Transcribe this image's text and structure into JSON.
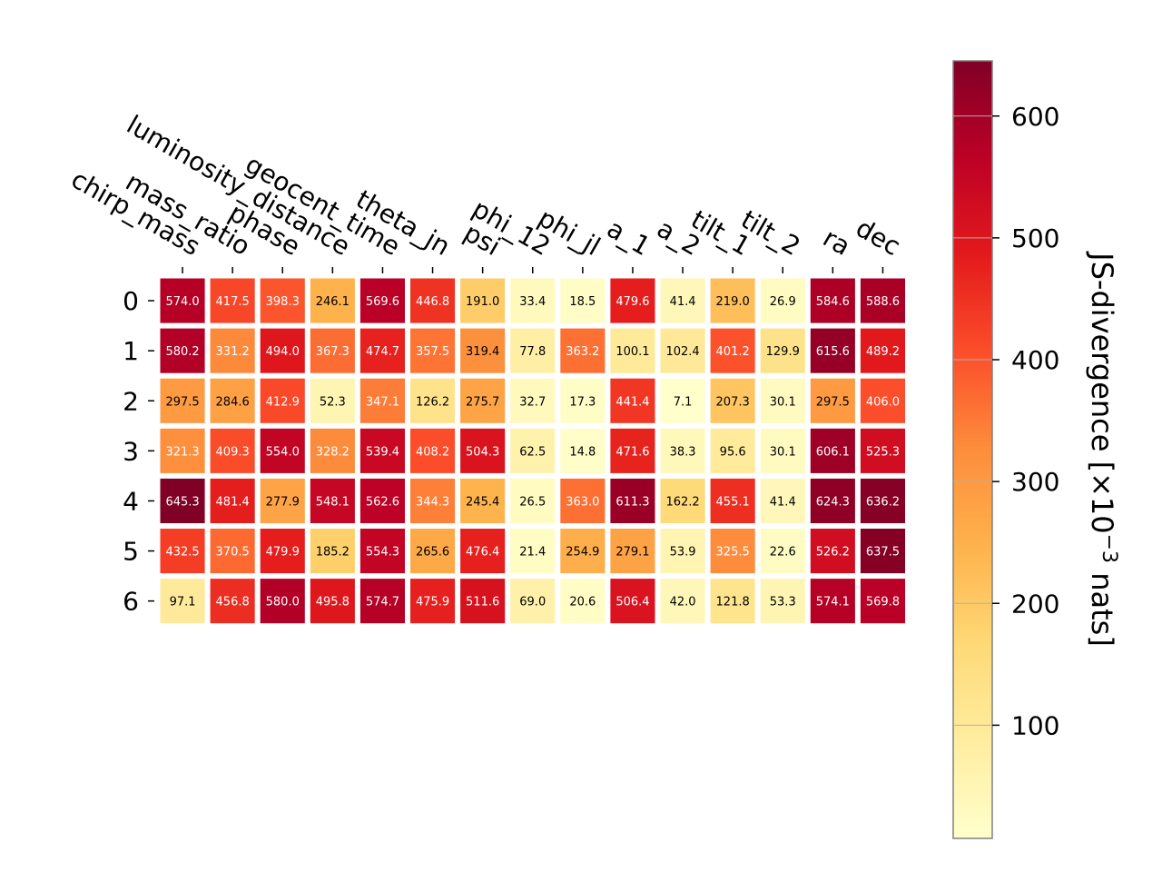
{
  "chart_data": {
    "type": "heatmap",
    "x_categories": [
      "chirp_mass",
      "mass_ratio",
      "phase",
      "luminosity_distance",
      "geocent_time",
      "theta_jn",
      "psi",
      "phi_12",
      "phi_jl",
      "a_1",
      "a_2",
      "tilt_1",
      "tilt_2",
      "ra",
      "dec"
    ],
    "y_categories": [
      "0",
      "1",
      "2",
      "3",
      "4",
      "5",
      "6"
    ],
    "values": [
      [
        574.0,
        417.5,
        398.3,
        246.1,
        569.6,
        446.8,
        191.0,
        33.4,
        18.5,
        479.6,
        41.4,
        219.0,
        26.9,
        584.6,
        588.6
      ],
      [
        580.2,
        331.2,
        494.0,
        367.3,
        474.7,
        357.5,
        319.4,
        77.8,
        363.2,
        100.1,
        102.4,
        401.2,
        129.9,
        615.6,
        489.2
      ],
      [
        297.5,
        284.6,
        412.9,
        52.3,
        347.1,
        126.2,
        275.7,
        32.7,
        17.3,
        441.4,
        7.1,
        207.3,
        30.1,
        297.5,
        406.0
      ],
      [
        321.3,
        409.3,
        554.0,
        328.2,
        539.4,
        408.2,
        504.3,
        62.5,
        14.8,
        471.6,
        38.3,
        95.6,
        30.1,
        606.1,
        525.3
      ],
      [
        645.3,
        481.4,
        277.9,
        548.1,
        562.6,
        344.3,
        245.4,
        26.5,
        363.0,
        611.3,
        162.2,
        455.1,
        41.4,
        624.3,
        636.2
      ],
      [
        432.5,
        370.5,
        479.9,
        185.2,
        554.3,
        265.6,
        476.4,
        21.4,
        254.9,
        279.1,
        53.9,
        325.5,
        22.6,
        526.2,
        637.5
      ],
      [
        97.1,
        456.8,
        580.0,
        495.8,
        574.7,
        475.9,
        511.6,
        69.0,
        20.6,
        506.4,
        42.0,
        121.8,
        53.3,
        574.1,
        569.8
      ]
    ],
    "value_labels": [
      [
        "574.0",
        "417.5",
        "398.3",
        "246.1",
        "569.6",
        "446.8",
        "191.0",
        "33.4",
        "18.5",
        "479.6",
        "41.4",
        "219.0",
        "26.9",
        "584.6",
        "588.6"
      ],
      [
        "580.2",
        "331.2",
        "494.0",
        "367.3",
        "474.7",
        "357.5",
        "319.4",
        "77.8",
        "363.2",
        "100.1",
        "102.4",
        "401.2",
        "129.9",
        "615.6",
        "489.2"
      ],
      [
        "297.5",
        "284.6",
        "412.9",
        "52.3",
        "347.1",
        "126.2",
        "275.7",
        "32.7",
        "17.3",
        "441.4",
        "7.1",
        "207.3",
        "30.1",
        "297.5",
        "406.0"
      ],
      [
        "321.3",
        "409.3",
        "554.0",
        "328.2",
        "539.4",
        "408.2",
        "504.3",
        "62.5",
        "14.8",
        "471.6",
        "38.3",
        "95.6",
        "30.1",
        "606.1",
        "525.3"
      ],
      [
        "645.3",
        "481.4",
        "277.9",
        "548.1",
        "562.6",
        "344.3",
        "245.4",
        "26.5",
        "363.0",
        "611.3",
        "162.2",
        "455.1",
        "41.4",
        "624.3",
        "636.2"
      ],
      [
        "432.5",
        "370.5",
        "479.9",
        "185.2",
        "554.3",
        "265.6",
        "476.4",
        "21.4",
        "254.9",
        "279.1",
        "53.9",
        "325.5",
        "22.6",
        "526.2",
        "637.5"
      ],
      [
        "97.1",
        "456.8",
        "580.0",
        "495.8",
        "574.7",
        "475.9",
        "511.6",
        "69.0",
        "20.6",
        "506.4",
        "42.0",
        "121.8",
        "53.3",
        "574.1",
        "569.8"
      ]
    ],
    "colorbar": {
      "label": "JS-divergence [×10",
      "label_exponent": "−3",
      "label_suffix": " nats]",
      "range": [
        7.1,
        645.3
      ],
      "ticks": [
        100,
        200,
        300,
        400,
        500,
        600
      ],
      "tick_labels": [
        "100",
        "200",
        "300",
        "400",
        "500",
        "600"
      ],
      "colormap": "YlOrRd"
    },
    "grid": false
  }
}
